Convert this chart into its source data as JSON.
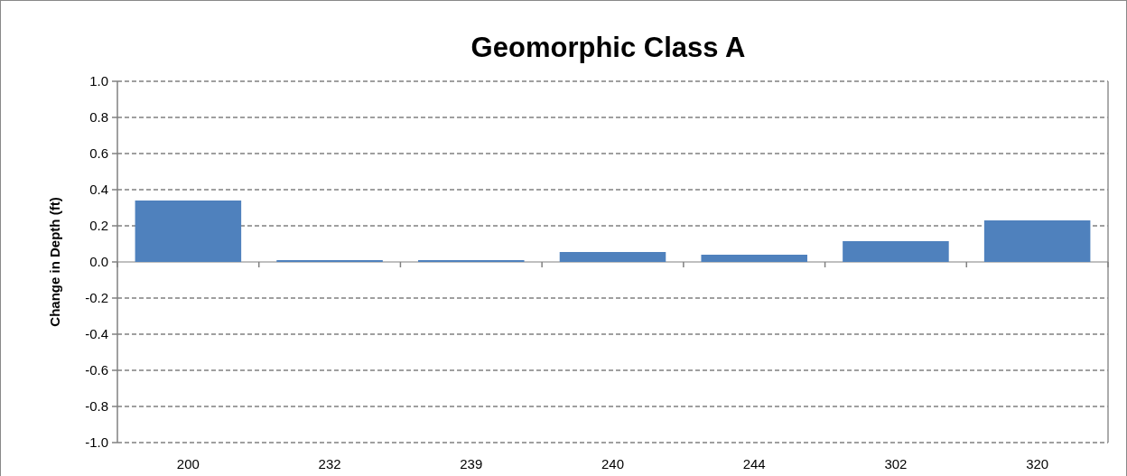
{
  "chart_data": {
    "type": "bar",
    "title": "Geomorphic Class A",
    "ylabel": "Change in Depth (ft)",
    "categories": [
      "200",
      "232",
      "239",
      "240",
      "244",
      "302",
      "320"
    ],
    "values": [
      0.34,
      0.01,
      0.01,
      0.055,
      0.04,
      0.115,
      0.23
    ],
    "color": "#4f81bd",
    "ylim": [
      -1.0,
      1.0
    ],
    "yticks": [
      {
        "value": -1,
        "label": "-1.0"
      },
      {
        "value": -0.8,
        "label": "-0.8"
      },
      {
        "value": -0.6,
        "label": "-0.6"
      },
      {
        "value": -0.4,
        "label": "-0.4"
      },
      {
        "value": -0.2,
        "label": "-0.2"
      },
      {
        "value": 0,
        "label": "0.0"
      },
      {
        "value": 0.2,
        "label": "0.2"
      },
      {
        "value": 0.4,
        "label": "0.4"
      },
      {
        "value": 0.6,
        "label": "0.6"
      },
      {
        "value": 0.8,
        "label": "0.8"
      },
      {
        "value": 1,
        "label": "1.0"
      }
    ],
    "grid": "y"
  }
}
